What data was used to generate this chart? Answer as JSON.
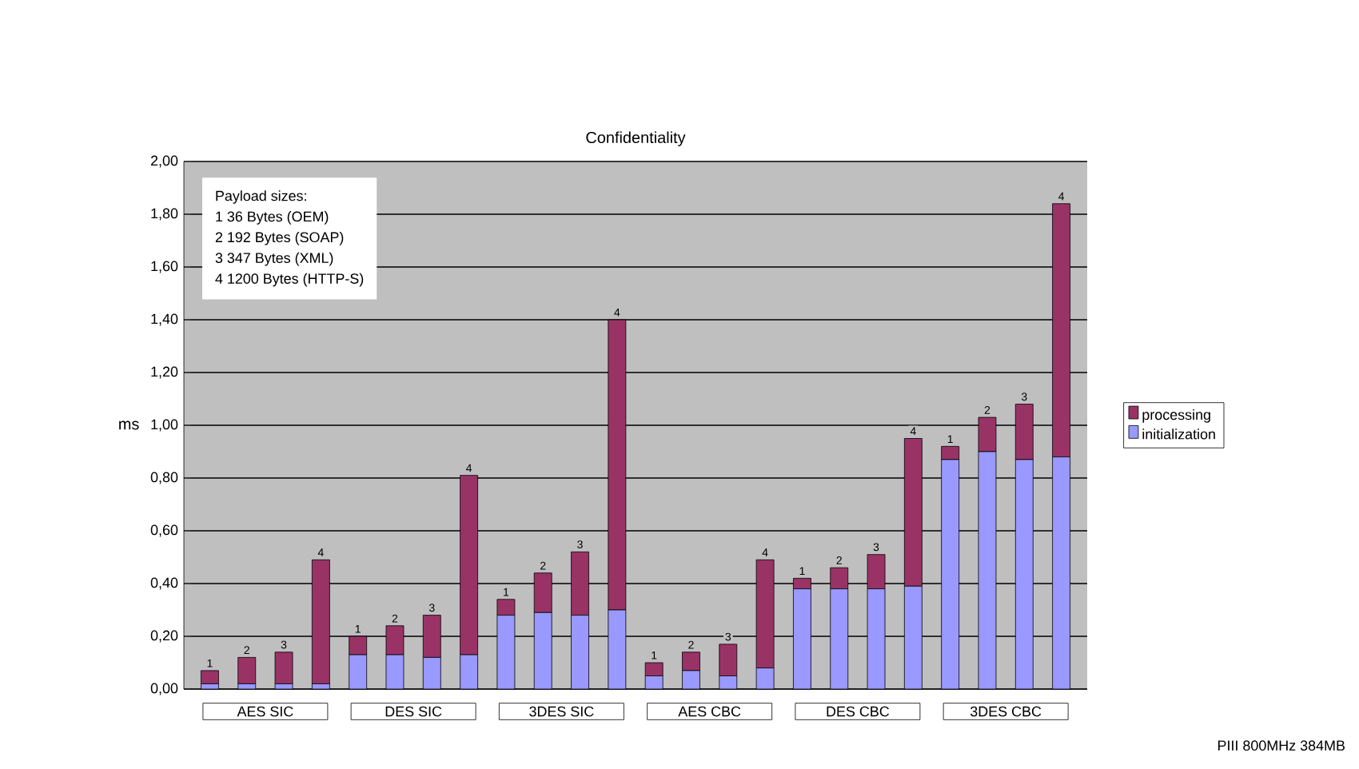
{
  "chart_data": {
    "type": "bar",
    "title": "Confidentiality",
    "ylabel": "ms",
    "stacked": true,
    "categories": [
      "1",
      "2",
      "3",
      "4",
      "1",
      "2",
      "3",
      "4",
      "1",
      "2",
      "3",
      "4",
      "1",
      "2",
      "3",
      "4",
      "1",
      "2",
      "3",
      "4",
      "1",
      "2",
      "3",
      "4"
    ],
    "series": [
      {
        "name": "initialization",
        "color": "#9999ff",
        "values": [
          0.02,
          0.02,
          0.02,
          0.02,
          0.13,
          0.13,
          0.12,
          0.13,
          0.28,
          0.29,
          0.28,
          0.3,
          0.05,
          0.07,
          0.05,
          0.08,
          0.38,
          0.38,
          0.38,
          0.39,
          0.87,
          0.9,
          0.87,
          0.88
        ]
      },
      {
        "name": "processing",
        "color": "#993366",
        "values": [
          0.05,
          0.1,
          0.12,
          0.47,
          0.07,
          0.11,
          0.16,
          0.68,
          0.06,
          0.15,
          0.24,
          1.1,
          0.05,
          0.07,
          0.12,
          0.41,
          0.04,
          0.08,
          0.13,
          0.56,
          0.05,
          0.13,
          0.21,
          0.96
        ]
      }
    ],
    "ylim": [
      0,
      2
    ],
    "yticks": [
      {
        "value": 0,
        "label": "0,00"
      },
      {
        "value": 0.2,
        "label": "0,20"
      },
      {
        "value": 0.4,
        "label": "0,40"
      },
      {
        "value": 0.6,
        "label": "0,60"
      },
      {
        "value": 0.8,
        "label": "0,80"
      },
      {
        "value": 1.0,
        "label": "1,00"
      },
      {
        "value": 1.2,
        "label": "1,20"
      },
      {
        "value": 1.4,
        "label": "1,40"
      },
      {
        "value": 1.6,
        "label": "1,60"
      },
      {
        "value": 1.8,
        "label": "1,80"
      },
      {
        "value": 2.0,
        "label": "2,00"
      }
    ],
    "grid": "y",
    "legend": "right",
    "annotations": [
      "AES SIC",
      "DES SIC",
      "3DES SIC",
      "AES CBC",
      "DES CBC",
      "3DES CBC",
      "Payload sizes:",
      "1   36 Bytes   (OEM)",
      "2   192 Bytes   (SOAP)",
      "3   347 Bytes   (XML)",
      "4   1200 Bytes   (HTTP-S)",
      "PIII 800MHz 384MB"
    ]
  }
}
